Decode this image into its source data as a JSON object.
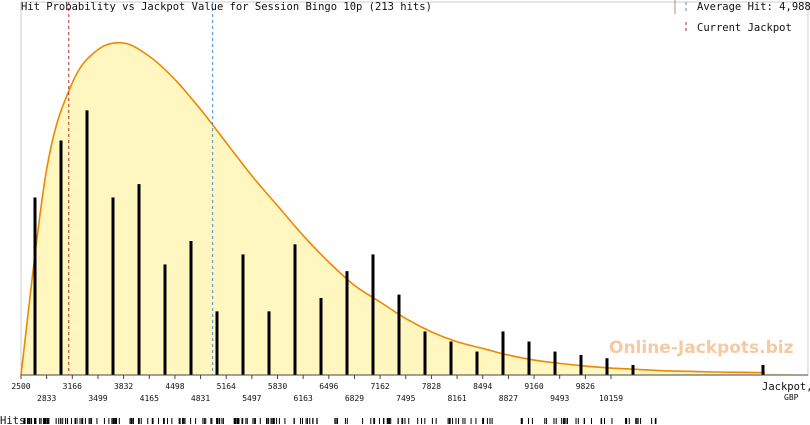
{
  "chart_data": {
    "type": "bar",
    "title": "Hit Probability vs Jackpot Value for Session Bingo 10p (213 hits)",
    "xlabel": "Jackpot,",
    "xunit": "GBP",
    "hits_label": "Hits",
    "watermark": "Online-Jackpots.biz",
    "x_range": [
      2500,
      10159
    ],
    "ticks_top": [
      "2500",
      "3166",
      "3832",
      "4498",
      "5164",
      "5830",
      "6496",
      "7162",
      "7828",
      "8494",
      "9160",
      "9826"
    ],
    "ticks_bottom": [
      "2833",
      "3499",
      "4165",
      "4831",
      "5497",
      "6163",
      "6829",
      "7495",
      "8161",
      "8827",
      "9493",
      "10159"
    ],
    "legend": [
      {
        "label": "Average Hit: 4,988",
        "value": 4988,
        "color": "#4a8fc7"
      },
      {
        "label": "Current Jackpot",
        "value": 3120,
        "color": "#b03030"
      }
    ],
    "curve_color": "#ee8800",
    "fill_color": "#fff6c0",
    "bars": {
      "x": [
        2666,
        3000,
        3333,
        3666,
        4000,
        4333,
        4666,
        5000,
        5333,
        5666,
        6000,
        6333,
        6666,
        7000,
        7333,
        7666,
        8000,
        8333,
        8666,
        9000,
        9333,
        9666,
        10000,
        10333,
        10666,
        11000,
        11333,
        11666,
        12000
      ],
      "heights": [
        0.53,
        0.7,
        0.79,
        0.53,
        0.57,
        0.33,
        0.4,
        0.19,
        0.36,
        0.19,
        0.39,
        0.23,
        0.31,
        0.36,
        0.24,
        0.13,
        0.1,
        0.07,
        0.13,
        0.1,
        0.07,
        0.06,
        0.05,
        0.03,
        0,
        0,
        0,
        0,
        0.03
      ]
    },
    "curve": {
      "x": [
        2500,
        2833,
        3166,
        3499,
        3832,
        4165,
        4498,
        4831,
        5164,
        5497,
        5830,
        6163,
        6496,
        6829,
        7162,
        7495,
        7828,
        8161,
        8494,
        8827,
        9160,
        9493,
        9826,
        10159,
        10492,
        10825,
        11158,
        11491,
        11824,
        12157
      ],
      "density": [
        0,
        0.62,
        0.88,
        0.98,
        1.0,
        0.96,
        0.89,
        0.8,
        0.7,
        0.6,
        0.51,
        0.42,
        0.34,
        0.27,
        0.22,
        0.17,
        0.13,
        0.1,
        0.08,
        0.06,
        0.045,
        0.035,
        0.027,
        0.021,
        0.017,
        0.013,
        0.011,
        0.009,
        0.008,
        0.007
      ]
    }
  }
}
